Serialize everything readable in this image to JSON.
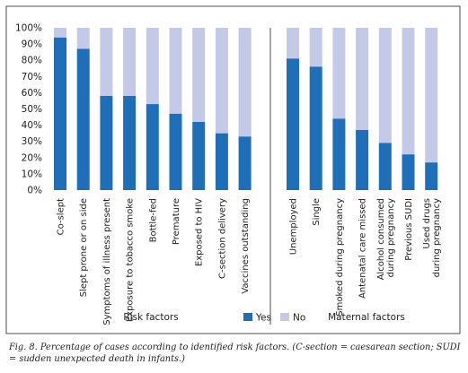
{
  "chart_data": {
    "type": "bar",
    "stacked": true,
    "ylim": [
      0,
      100
    ],
    "yticks": [
      "0%",
      "10%",
      "20%",
      "30%",
      "40%",
      "50%",
      "60%",
      "70%",
      "80%",
      "90%",
      "100%"
    ],
    "grid": false,
    "legend_position": "bottom",
    "colors": {
      "yes": "#1f6fb8",
      "no": "#c3c9e6",
      "frame": "#222222"
    },
    "series": [
      {
        "name": "Yes",
        "key": "yes"
      },
      {
        "name": "No",
        "key": "no"
      }
    ],
    "groups": [
      {
        "label": "Risk factors",
        "categories": [
          "Co-slept",
          "Slept prone or on side",
          "Symptoms of illness present",
          "Exposure to tobacco smoke",
          "Bottle-fed",
          "Premature",
          "Exposed to HIV",
          "C-section delivery",
          "Vaccines outstanding"
        ],
        "yes": [
          94,
          87,
          58,
          58,
          53,
          47,
          42,
          35,
          33
        ],
        "no": [
          6,
          13,
          42,
          42,
          47,
          53,
          58,
          65,
          67
        ]
      },
      {
        "label": "Maternal factors",
        "categories": [
          "Unemployed",
          "Single",
          "Smoked during pregnancy",
          "Antenatal care missed",
          "Alcohol consumed|during pregnancy",
          "Previous SUDI",
          "Used drugs|during pregnancy"
        ],
        "yes": [
          81,
          76,
          44,
          37,
          29,
          22,
          17
        ],
        "no": [
          19,
          24,
          56,
          63,
          71,
          78,
          83
        ]
      }
    ]
  },
  "caption": "Fig. 8. Percentage of cases according to identified risk factors. (C-section = caesarean section; SUDI = sudden unexpected death in infants.)"
}
